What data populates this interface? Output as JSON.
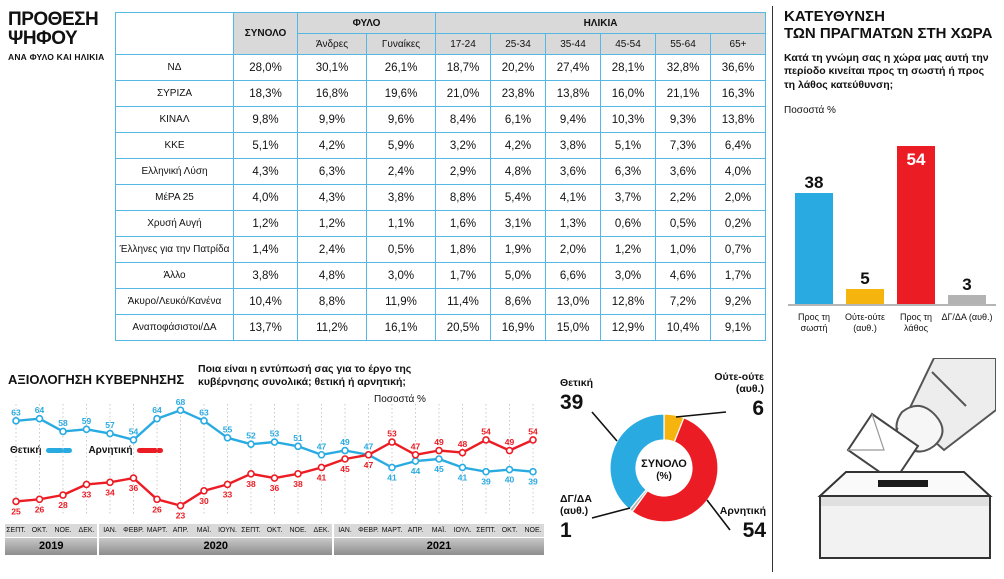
{
  "colors": {
    "blue": "#29abe2",
    "red": "#ec1c24",
    "yellow": "#f6b40e",
    "gray": "#b3b3b3"
  },
  "vote_section": {
    "title": "ΠΡΟΘΕΣΗ ΨΗΦΟΥ",
    "subtitle": "ΑΝΑ ΦΥΛΟ ΚΑΙ ΗΛΙΚΙΑ"
  },
  "direction_section": {
    "title_l1": "ΚΑΤΕΥΘΥΝΣΗ",
    "title_l2": "ΤΩΝ ΠΡΑΓΜΑΤΩΝ ΣΤΗ ΧΩΡΑ",
    "question": "Κατά τη γνώμη σας η χώρα μας αυτή την περίοδο κινείται προς τη σωστή ή προς τη λάθος κατεύθυνση;",
    "units": "Ποσοστά %"
  },
  "evaluation_section": {
    "title": "ΑΞΙΟΛΟΓΗΣΗ ΚΥΒΕΡΝΗΣΗΣ",
    "question": "Ποια είναι η εντύπωσή σας για το έργο της κυβέρνησης συνολικά; θετική ή αρνητική;",
    "units": "Ποσοστά %"
  },
  "chart_data": [
    {
      "type": "table",
      "title": "ΠΡΟΘΕΣΗ ΨΗΦΟΥ ΑΝΑ ΦΥΛΟ ΚΑΙ ΗΛΙΚΙΑ",
      "total_header": "ΣΥΝΟΛΟ",
      "groups": [
        {
          "label": "ΦΥΛΟ",
          "columns": [
            "Άνδρες",
            "Γυναίκες"
          ]
        },
        {
          "label": "ΗΛΙΚΙΑ",
          "columns": [
            "17-24",
            "25-34",
            "35-44",
            "45-54",
            "55-64",
            "65+"
          ]
        }
      ],
      "rows": [
        {
          "label": "ΝΔ",
          "values": [
            "28,0%",
            "30,1%",
            "26,1%",
            "18,7%",
            "20,2%",
            "27,4%",
            "28,1%",
            "32,8%",
            "36,6%"
          ]
        },
        {
          "label": "ΣΥΡΙΖΑ",
          "values": [
            "18,3%",
            "16,8%",
            "19,6%",
            "21,0%",
            "23,8%",
            "13,8%",
            "16,0%",
            "21,1%",
            "16,3%"
          ]
        },
        {
          "label": "ΚΙΝΑΛ",
          "values": [
            "9,8%",
            "9,9%",
            "9,6%",
            "8,4%",
            "6,1%",
            "9,4%",
            "10,3%",
            "9,3%",
            "13,8%"
          ]
        },
        {
          "label": "ΚΚΕ",
          "values": [
            "5,1%",
            "4,2%",
            "5,9%",
            "3,2%",
            "4,2%",
            "3,8%",
            "5,1%",
            "7,3%",
            "6,4%"
          ]
        },
        {
          "label": "Ελληνική Λύση",
          "values": [
            "4,3%",
            "6,3%",
            "2,4%",
            "2,9%",
            "4,8%",
            "3,6%",
            "6,3%",
            "3,6%",
            "4,0%"
          ]
        },
        {
          "label": "ΜέΡΑ 25",
          "values": [
            "4,0%",
            "4,3%",
            "3,8%",
            "8,8%",
            "5,4%",
            "4,1%",
            "3,7%",
            "2,2%",
            "2,0%"
          ]
        },
        {
          "label": "Χρυσή Αυγή",
          "values": [
            "1,2%",
            "1,2%",
            "1,1%",
            "1,6%",
            "3,1%",
            "1,3%",
            "0,6%",
            "0,5%",
            "0,2%"
          ]
        },
        {
          "label": "Έλληνες για την Πατρίδα",
          "values": [
            "1,4%",
            "2,4%",
            "0,5%",
            "1,8%",
            "1,9%",
            "2,0%",
            "1,2%",
            "1,0%",
            "0,7%"
          ]
        },
        {
          "label": "Άλλο",
          "values": [
            "3,8%",
            "4,8%",
            "3,0%",
            "1,7%",
            "5,0%",
            "6,6%",
            "3,0%",
            "4,6%",
            "1,7%"
          ]
        },
        {
          "label": "Άκυρο/Λευκό/Κανένα",
          "values": [
            "10,4%",
            "8,8%",
            "11,9%",
            "11,4%",
            "8,6%",
            "13,0%",
            "12,8%",
            "7,2%",
            "9,2%"
          ]
        },
        {
          "label": "Αναποφάσιστοι/ΔΑ",
          "values": [
            "13,7%",
            "11,2%",
            "16,1%",
            "20,5%",
            "16,9%",
            "15,0%",
            "12,9%",
            "10,4%",
            "9,1%"
          ]
        }
      ]
    },
    {
      "type": "bar",
      "title": "ΚΑΤΕΥΘΥΝΣΗ ΤΩΝ ΠΡΑΓΜΑΤΩΝ ΣΤΗ ΧΩΡΑ",
      "categories": [
        "Προς τη σωστή",
        "Ούτε-ούτε (αυθ.)",
        "Προς τη λάθος",
        "ΔΓ/ΔΑ (αυθ.)"
      ],
      "values": [
        38,
        5,
        54,
        3
      ],
      "color_keys": [
        "blue",
        "yellow",
        "red",
        "gray"
      ],
      "ylabel": "Ποσοστά %",
      "ylim": [
        0,
        60
      ]
    },
    {
      "type": "line",
      "title": "ΑΞΙΟΛΟΓΗΣΗ ΚΥΒΕΡΝΗΣΗΣ",
      "ylabel": "Ποσοστά %",
      "ylim": [
        20,
        70
      ],
      "x_labels": [
        "ΣΕΠΤ.",
        "ΟΚΤ.",
        "ΝΟΕ.",
        "ΔΕΚ.",
        "ΙΑΝ.",
        "ΦΕΒΡ.",
        "ΜΑΡΤ.",
        "ΑΠΡ.",
        "ΜΑΪ.",
        "ΙΟΥΝ.",
        "ΣΕΠΤ.",
        "ΟΚΤ.",
        "ΝΟΕ.",
        "ΔΕΚ.",
        "ΙΑΝ.",
        "ΦΕΒΡ.",
        "ΜΑΡΤ.",
        "ΑΠΡ.",
        "ΜΑΪ.",
        "ΙΟΥΛ.",
        "ΣΕΠΤ.",
        "ΟΚΤ.",
        "ΝΟΕ."
      ],
      "year_groups": [
        {
          "label": "2019",
          "count": 4
        },
        {
          "label": "2020",
          "count": 10
        },
        {
          "label": "2021",
          "count": 9
        }
      ],
      "series": [
        {
          "name": "Θετική",
          "color_key": "blue",
          "values": [
            63,
            64,
            58,
            59,
            57,
            54,
            64,
            68,
            63,
            55,
            52,
            53,
            51,
            47,
            49,
            47,
            41,
            44,
            45,
            41,
            39,
            40,
            39
          ]
        },
        {
          "name": "Αρνητική",
          "color_key": "red",
          "values": [
            25,
            26,
            28,
            33,
            34,
            36,
            26,
            23,
            30,
            33,
            38,
            36,
            38,
            41,
            45,
            47,
            53,
            47,
            49,
            48,
            54,
            49,
            54
          ]
        }
      ]
    },
    {
      "type": "pie",
      "center_line1": "ΣΥΝΟΛΟ",
      "center_line2": "(%)",
      "slices": [
        {
          "label": "Ούτε-ούτε (αυθ.)",
          "value": 6,
          "color_key": "yellow"
        },
        {
          "label": "Αρνητική",
          "value": 54,
          "color_key": "red"
        },
        {
          "label": "ΔΓ/ΔΑ (αυθ.)",
          "value": 1,
          "color_key": "gray"
        },
        {
          "label": "Θετική",
          "value": 39,
          "color_key": "blue"
        }
      ]
    }
  ]
}
